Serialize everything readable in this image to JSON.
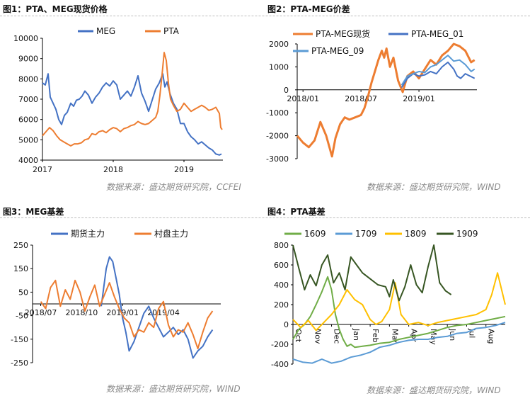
{
  "titles": {
    "fig1": "图1：PTA、MEG现货价格",
    "fig2": "图2：PTA-MEG价差",
    "fig3": "图3：MEG基差",
    "fig4": "图4：PTA基差"
  },
  "sources": {
    "fig1": "数据来源：盛达期货研究院，CCFEI",
    "fig2": "数据来源：盛达期货研究院，WIND",
    "fig3": "数据来源：盛达期货研究院，WIND",
    "fig4": "数据来源：盛达期货研究院，WIND"
  },
  "chart_data": [
    {
      "type": "line",
      "title": "图1：PTA、MEG现货价格",
      "ylim": [
        4000,
        10000
      ],
      "yticks": [
        4000,
        5000,
        6000,
        7000,
        8000,
        9000,
        10000
      ],
      "xticks": [
        "2017",
        "2018",
        "2019"
      ],
      "xrange": [
        2017.0,
        2019.55
      ],
      "xtick_positions": [
        2017.0,
        2018.0,
        2019.0
      ],
      "grid": false,
      "legend": "top-center",
      "series": [
        {
          "name": "MEG",
          "color": "#4472C4",
          "x": [
            2017.0,
            2017.04,
            2017.08,
            2017.11,
            2017.15,
            2017.19,
            2017.23,
            2017.27,
            2017.31,
            2017.35,
            2017.4,
            2017.44,
            2017.48,
            2017.52,
            2017.56,
            2017.6,
            2017.65,
            2017.7,
            2017.75,
            2017.8,
            2017.85,
            2017.9,
            2017.95,
            2018.0,
            2018.05,
            2018.1,
            2018.15,
            2018.2,
            2018.25,
            2018.3,
            2018.35,
            2018.4,
            2018.45,
            2018.5,
            2018.55,
            2018.6,
            2018.65,
            2018.7,
            2018.73,
            2018.76,
            2018.8,
            2018.85,
            2018.9,
            2018.95,
            2019.0,
            2019.05,
            2019.1,
            2019.15,
            2019.2,
            2019.25,
            2019.3,
            2019.35,
            2019.4,
            2019.45,
            2019.5,
            2019.53
          ],
          "y": [
            7800,
            7700,
            8250,
            7100,
            6800,
            6500,
            6000,
            5750,
            6200,
            6350,
            6800,
            6650,
            6950,
            7000,
            7150,
            7400,
            7200,
            6800,
            7100,
            7300,
            7600,
            7800,
            7650,
            7900,
            7700,
            7000,
            7200,
            7400,
            7150,
            7600,
            8150,
            7300,
            6900,
            6400,
            6950,
            7500,
            7800,
            8250,
            7600,
            7850,
            7300,
            6800,
            6500,
            5800,
            5800,
            5400,
            5150,
            5000,
            4800,
            4900,
            4750,
            4600,
            4500,
            4300,
            4250,
            4300
          ]
        },
        {
          "name": "PTA",
          "color": "#ED7D31",
          "x": [
            2017.0,
            2017.05,
            2017.1,
            2017.15,
            2017.2,
            2017.25,
            2017.3,
            2017.35,
            2017.4,
            2017.45,
            2017.5,
            2017.55,
            2017.6,
            2017.65,
            2017.7,
            2017.75,
            2017.8,
            2017.85,
            2017.9,
            2017.95,
            2018.0,
            2018.05,
            2018.1,
            2018.15,
            2018.2,
            2018.25,
            2018.3,
            2018.35,
            2018.4,
            2018.45,
            2018.5,
            2018.55,
            2018.6,
            2018.63,
            2018.66,
            2018.69,
            2018.72,
            2018.75,
            2018.78,
            2018.81,
            2018.85,
            2018.9,
            2018.95,
            2019.0,
            2019.05,
            2019.1,
            2019.15,
            2019.2,
            2019.25,
            2019.3,
            2019.35,
            2019.4,
            2019.45,
            2019.5,
            2019.52,
            2019.54
          ],
          "y": [
            5200,
            5400,
            5600,
            5450,
            5200,
            5000,
            4900,
            4800,
            4700,
            4800,
            4800,
            4850,
            5000,
            5050,
            5300,
            5250,
            5400,
            5450,
            5350,
            5500,
            5600,
            5550,
            5400,
            5550,
            5600,
            5700,
            5750,
            5900,
            5800,
            5750,
            5800,
            5950,
            6100,
            6400,
            7200,
            8200,
            9300,
            8900,
            7800,
            7000,
            6700,
            6400,
            6500,
            6800,
            6600,
            6400,
            6500,
            6600,
            6700,
            6600,
            6450,
            6500,
            6600,
            6300,
            5600,
            5500
          ]
        }
      ]
    },
    {
      "type": "line",
      "title": "图2：PTA-MEG价差",
      "ylim": [
        -3000,
        2000
      ],
      "yticks": [
        -3000,
        -2000,
        -1000,
        0,
        1000,
        2000
      ],
      "xticks": [
        "2018/01",
        "2018/07",
        "2019/01"
      ],
      "xrange": [
        2017.95,
        2019.5
      ],
      "xtick_positions": [
        2018.0,
        2018.5,
        2019.0
      ],
      "grid": false,
      "legend": "top",
      "series": [
        {
          "name": "PTA-MEG现货",
          "color": "#ED7D31",
          "x": [
            2017.95,
            2018.0,
            2018.05,
            2018.1,
            2018.15,
            2018.2,
            2018.25,
            2018.28,
            2018.32,
            2018.36,
            2018.4,
            2018.45,
            2018.5,
            2018.53,
            2018.56,
            2018.59,
            2018.62,
            2018.65,
            2018.68,
            2018.7,
            2018.72,
            2018.75,
            2018.78,
            2018.82,
            2018.86,
            2018.9,
            2018.95,
            2019.0,
            2019.05,
            2019.1,
            2019.15,
            2019.2,
            2019.25,
            2019.3,
            2019.35,
            2019.4,
            2019.45,
            2019.48
          ],
          "y": [
            -2000,
            -2300,
            -2500,
            -2200,
            -1400,
            -2000,
            -2900,
            -2100,
            -1500,
            -1200,
            -1300,
            -1200,
            -1100,
            -800,
            -300,
            300,
            800,
            1300,
            1700,
            1400,
            1800,
            1000,
            1400,
            400,
            -100,
            600,
            800,
            500,
            900,
            1300,
            1100,
            1500,
            1700,
            2000,
            1900,
            1700,
            1200,
            1300
          ]
        },
        {
          "name": "PTA-MEG_01",
          "color": "#4472C4",
          "x": [
            2018.85,
            2018.9,
            2018.95,
            2019.0,
            2019.05,
            2019.1,
            2019.15,
            2019.2,
            2019.25,
            2019.3,
            2019.33,
            2019.36,
            2019.4,
            2019.44,
            2019.48
          ],
          "y": [
            100,
            500,
            700,
            600,
            650,
            800,
            700,
            1000,
            1200,
            900,
            600,
            500,
            700,
            600,
            500
          ]
        },
        {
          "name": "PTA-MEG_09",
          "color": "#5B9BD5",
          "x": [
            2018.85,
            2018.9,
            2018.95,
            2019.0,
            2019.05,
            2019.1,
            2019.15,
            2019.2,
            2019.25,
            2019.3,
            2019.35,
            2019.4,
            2019.45,
            2019.48
          ],
          "y": [
            200,
            600,
            700,
            800,
            750,
            1000,
            1100,
            1300,
            1500,
            1250,
            1300,
            1100,
            800,
            900
          ]
        }
      ]
    },
    {
      "type": "line",
      "title": "图3：MEG基差",
      "ylim": [
        -250,
        250
      ],
      "yticks": [
        -250,
        -150,
        -50,
        50,
        150,
        250
      ],
      "xticks": [
        "2018/07",
        "2018/10",
        "2019/01",
        "2019/04"
      ],
      "xrange": [
        2018.45,
        2019.6
      ],
      "xtick_positions": [
        2018.5,
        2018.75,
        2019.0,
        2019.25
      ],
      "grid": false,
      "legend": "top-center",
      "series": [
        {
          "name": "期货主力",
          "color": "#4472C4",
          "x": [
            2018.87,
            2018.9,
            2018.92,
            2018.94,
            2018.96,
            2018.98,
            2019.0,
            2019.02,
            2019.04,
            2019.07,
            2019.1,
            2019.13,
            2019.16,
            2019.19,
            2019.22,
            2019.25,
            2019.28,
            2019.31,
            2019.34,
            2019.37,
            2019.4,
            2019.43,
            2019.46,
            2019.49,
            2019.52,
            2019.55
          ],
          "y": [
            -10,
            150,
            200,
            180,
            110,
            40,
            -60,
            -120,
            -200,
            -160,
            -100,
            -40,
            -10,
            -60,
            -100,
            -140,
            -120,
            -100,
            -130,
            -110,
            -150,
            -230,
            -200,
            -180,
            -140,
            -110
          ]
        },
        {
          "name": "村盘主力",
          "color": "#ED7D31",
          "x": [
            2018.5,
            2018.53,
            2018.56,
            2018.59,
            2018.62,
            2018.65,
            2018.68,
            2018.71,
            2018.74,
            2018.77,
            2018.8,
            2018.83,
            2018.86,
            2018.89,
            2018.92,
            2018.95,
            2018.98,
            2019.01,
            2019.04,
            2019.07,
            2019.1,
            2019.13,
            2019.16,
            2019.19,
            2019.22,
            2019.25,
            2019.28,
            2019.31,
            2019.34,
            2019.37,
            2019.4,
            2019.43,
            2019.46,
            2019.49,
            2019.52,
            2019.55
          ],
          "y": [
            10,
            -20,
            70,
            100,
            -10,
            60,
            20,
            100,
            50,
            -30,
            30,
            80,
            -10,
            40,
            90,
            30,
            -20,
            -60,
            -80,
            -140,
            -110,
            -120,
            -80,
            -100,
            -20,
            10,
            -90,
            -140,
            -110,
            -120,
            -80,
            -130,
            -190,
            -120,
            -60,
            -30
          ]
        }
      ]
    },
    {
      "type": "line",
      "title": "图4：PTA基差",
      "ylim": [
        -400,
        800
      ],
      "yticks": [
        -400,
        -200,
        0,
        200,
        400,
        600,
        800
      ],
      "xticks": [
        "Oct",
        "Nov",
        "Dec",
        "Jan",
        "Feb",
        "Mar",
        "Apr",
        "May",
        "Jun",
        "Jul",
        "Aug"
      ],
      "xrange": [
        0,
        11
      ],
      "xtick_positions": [
        0,
        1,
        2,
        3,
        4,
        5,
        6,
        7,
        8,
        9,
        10
      ],
      "grid": false,
      "legend": "top",
      "series": [
        {
          "name": "1609",
          "color": "#70AD47",
          "x": [
            0,
            0.3,
            0.6,
            0.9,
            1.2,
            1.5,
            1.8,
            2.0,
            2.2,
            2.4,
            2.6,
            2.8,
            3.0,
            3.2,
            3.6,
            4.0,
            4.5,
            5.0,
            5.5,
            6.0,
            6.5,
            7.0,
            7.5,
            8.0,
            8.5,
            9.0,
            9.5,
            10.0,
            10.5,
            11.0
          ],
          "y": [
            -150,
            -50,
            0,
            80,
            200,
            330,
            480,
            350,
            100,
            -50,
            -150,
            -220,
            -200,
            -230,
            -220,
            -210,
            -190,
            -180,
            -150,
            -130,
            -110,
            -90,
            -60,
            -30,
            -10,
            0,
            20,
            40,
            60,
            80
          ]
        },
        {
          "name": "1709",
          "color": "#5B9BD5",
          "x": [
            0,
            0.5,
            1.0,
            1.5,
            2.0,
            2.5,
            3.0,
            3.5,
            4.0,
            4.5,
            5.0,
            5.5,
            6.0,
            6.5,
            7.0,
            7.5,
            8.0,
            8.5,
            9.0,
            9.5,
            10.0,
            10.5,
            11.0
          ],
          "y": [
            -350,
            -380,
            -390,
            -350,
            -390,
            -370,
            -330,
            -310,
            -280,
            -230,
            -210,
            -180,
            -160,
            -150,
            -150,
            -130,
            -120,
            -90,
            -80,
            -40,
            -30,
            -10,
            20
          ]
        },
        {
          "name": "1809",
          "color": "#FFC000",
          "x": [
            0,
            0.4,
            0.8,
            1.2,
            1.6,
            2.0,
            2.4,
            2.8,
            3.2,
            3.6,
            4.0,
            4.3,
            4.6,
            5.0,
            5.3,
            5.6,
            6.0,
            6.5,
            7.0,
            7.5,
            8.0,
            8.5,
            9.0,
            9.5,
            10.0,
            10.3,
            10.6,
            11.0
          ],
          "y": [
            50,
            -30,
            40,
            -60,
            20,
            100,
            200,
            350,
            250,
            200,
            50,
            0,
            30,
            150,
            420,
            100,
            0,
            20,
            -10,
            20,
            40,
            60,
            80,
            100,
            150,
            300,
            520,
            200
          ]
        },
        {
          "name": "1909",
          "color": "#375623",
          "x": [
            0,
            0.3,
            0.6,
            0.9,
            1.2,
            1.5,
            1.8,
            2.1,
            2.4,
            2.7,
            3.0,
            3.3,
            3.6,
            4.0,
            4.4,
            4.8,
            5.0,
            5.2,
            5.5,
            5.8,
            6.1,
            6.4,
            6.7,
            7.0,
            7.3,
            7.6,
            7.9,
            8.2
          ],
          "y": [
            800,
            570,
            350,
            500,
            390,
            600,
            700,
            420,
            520,
            350,
            680,
            600,
            520,
            460,
            400,
            380,
            280,
            450,
            240,
            380,
            600,
            400,
            320,
            580,
            800,
            420,
            340,
            300
          ]
        }
      ]
    }
  ]
}
